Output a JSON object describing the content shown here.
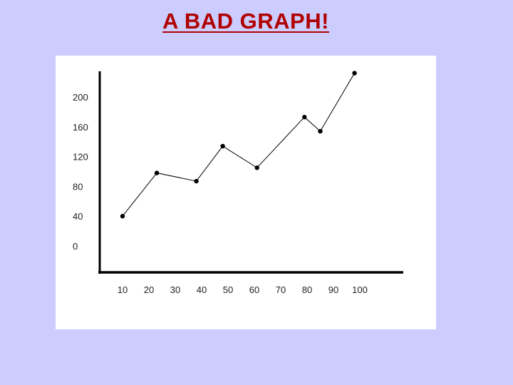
{
  "slide": {
    "title": "A BAD GRAPH!"
  },
  "colors": {
    "background": "#ccccff",
    "title": "#b00000",
    "panel": "#ffffff",
    "line": "#000000"
  },
  "chart_data": {
    "type": "line",
    "title": "",
    "xlabel": "",
    "ylabel": "",
    "x_ticks": [
      "10",
      "20",
      "30",
      "40",
      "50",
      "60",
      "70",
      "80",
      "90",
      "100"
    ],
    "y_ticks": [
      "200",
      "160",
      "120",
      "80",
      "40",
      "0"
    ],
    "grid": false,
    "legend": "none",
    "series": [
      {
        "x": [
          10,
          23,
          38,
          48,
          61,
          79,
          85,
          98
        ],
        "y": [
          40,
          98,
          87,
          134,
          105,
          173,
          154,
          232
        ]
      }
    ]
  }
}
